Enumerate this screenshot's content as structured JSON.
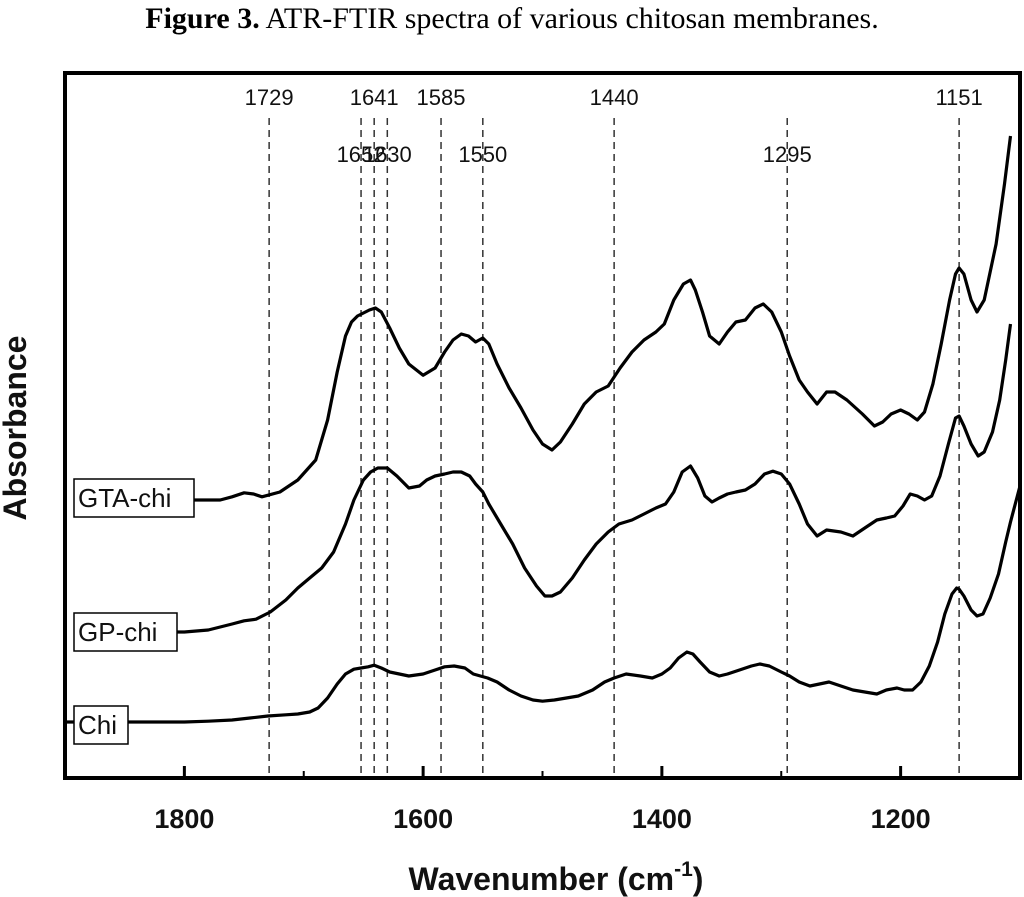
{
  "figure": {
    "caption_prefix": "Figure 3.",
    "caption_text": " ATR-FTIR spectra of various chitosan membranes."
  },
  "chart_data": {
    "type": "line",
    "xlabel": "Wavenumber (cm",
    "xlabel_sup": "-1",
    "xlabel_suffix": ")",
    "ylabel": "Absorbance",
    "xlim": [
      1900,
      1100
    ],
    "x_reversed": true,
    "ylim": [
      0,
      1
    ],
    "y_ticks_shown": false,
    "x_ticks": [
      1800,
      1600,
      1400,
      1200
    ],
    "x_tick_labels": [
      "1800",
      "1600",
      "1400",
      "1200"
    ],
    "grid": false,
    "legend": "inline labels at left",
    "peak_lines": [
      1729,
      1652,
      1641,
      1630,
      1585,
      1550,
      1440,
      1295,
      1151
    ],
    "peak_labels": [
      {
        "text": "1729",
        "x": 1729,
        "row": 1
      },
      {
        "text": "1641",
        "x": 1641,
        "row": 1
      },
      {
        "text": "1585",
        "x": 1585,
        "row": 1
      },
      {
        "text": "1440",
        "x": 1440,
        "row": 1
      },
      {
        "text": "1151",
        "x": 1151,
        "row": 1
      },
      {
        "text": "1652",
        "x": 1652,
        "row": 2
      },
      {
        "text": "1630",
        "x": 1630,
        "row": 2
      },
      {
        "text": "1550",
        "x": 1550,
        "row": 2
      },
      {
        "text": "1295",
        "x": 1295,
        "row": 2
      }
    ],
    "series": [
      {
        "name": "GTA-chi",
        "x": [
          1850,
          1810,
          1790,
          1770,
          1760,
          1750,
          1742,
          1735,
          1720,
          1705,
          1690,
          1680,
          1672,
          1665,
          1660,
          1655,
          1645,
          1640,
          1635,
          1628,
          1620,
          1612,
          1600,
          1590,
          1582,
          1575,
          1568,
          1562,
          1556,
          1550,
          1545,
          1538,
          1528,
          1518,
          1508,
          1500,
          1492,
          1485,
          1475,
          1465,
          1455,
          1445,
          1435,
          1425,
          1415,
          1405,
          1398,
          1390,
          1382,
          1376,
          1372,
          1366,
          1360,
          1352,
          1345,
          1338,
          1330,
          1322,
          1315,
          1308,
          1300,
          1293,
          1285,
          1278,
          1270,
          1262,
          1255,
          1245,
          1232,
          1222,
          1215,
          1208,
          1200,
          1193,
          1186,
          1180,
          1173,
          1166,
          1159,
          1154,
          1151,
          1147,
          1141,
          1136,
          1130,
          1120,
          1113,
          1108
        ],
        "y": [
          0.06,
          0.06,
          0.06,
          0.06,
          0.068,
          0.078,
          0.075,
          0.068,
          0.08,
          0.11,
          0.16,
          0.26,
          0.38,
          0.47,
          0.505,
          0.52,
          0.535,
          0.54,
          0.53,
          0.49,
          0.44,
          0.4,
          0.372,
          0.39,
          0.43,
          0.46,
          0.475,
          0.47,
          0.455,
          0.465,
          0.45,
          0.4,
          0.34,
          0.29,
          0.235,
          0.2,
          0.185,
          0.205,
          0.25,
          0.3,
          0.33,
          0.345,
          0.39,
          0.43,
          0.46,
          0.48,
          0.5,
          0.56,
          0.6,
          0.61,
          0.585,
          0.53,
          0.47,
          0.45,
          0.48,
          0.505,
          0.51,
          0.54,
          0.55,
          0.53,
          0.48,
          0.42,
          0.36,
          0.33,
          0.3,
          0.33,
          0.33,
          0.31,
          0.275,
          0.245,
          0.255,
          0.275,
          0.285,
          0.275,
          0.26,
          0.28,
          0.35,
          0.45,
          0.56,
          0.625,
          0.64,
          0.625,
          0.56,
          0.53,
          0.56,
          0.7,
          0.85,
          0.97
        ]
      },
      {
        "name": "GP-chi",
        "x": [
          1830,
          1800,
          1780,
          1760,
          1750,
          1740,
          1728,
          1715,
          1705,
          1695,
          1685,
          1675,
          1665,
          1658,
          1650,
          1644,
          1638,
          1630,
          1622,
          1612,
          1603,
          1597,
          1590,
          1582,
          1575,
          1568,
          1561,
          1556,
          1550,
          1545,
          1535,
          1525,
          1515,
          1505,
          1498,
          1492,
          1485,
          1475,
          1465,
          1455,
          1445,
          1436,
          1425,
          1415,
          1405,
          1397,
          1390,
          1383,
          1376,
          1370,
          1364,
          1358,
          1352,
          1345,
          1338,
          1330,
          1322,
          1314,
          1307,
          1300,
          1293,
          1285,
          1278,
          1270,
          1262,
          1250,
          1240,
          1230,
          1220,
          1212,
          1205,
          1198,
          1192,
          1186,
          1180,
          1174,
          1167,
          1160,
          1154,
          1151,
          1147,
          1141,
          1135,
          1130,
          1123,
          1117,
          1112,
          1108
        ],
        "y": [
          0.06,
          0.06,
          0.065,
          0.08,
          0.088,
          0.092,
          0.11,
          0.14,
          0.17,
          0.195,
          0.22,
          0.26,
          0.33,
          0.39,
          0.44,
          0.46,
          0.47,
          0.47,
          0.45,
          0.42,
          0.425,
          0.44,
          0.45,
          0.455,
          0.46,
          0.46,
          0.45,
          0.43,
          0.41,
          0.38,
          0.33,
          0.28,
          0.22,
          0.175,
          0.15,
          0.15,
          0.16,
          0.195,
          0.24,
          0.28,
          0.31,
          0.33,
          0.34,
          0.355,
          0.37,
          0.38,
          0.41,
          0.46,
          0.475,
          0.445,
          0.4,
          0.385,
          0.395,
          0.405,
          0.41,
          0.415,
          0.43,
          0.455,
          0.462,
          0.455,
          0.43,
          0.38,
          0.33,
          0.3,
          0.315,
          0.31,
          0.3,
          0.32,
          0.34,
          0.345,
          0.35,
          0.375,
          0.405,
          0.4,
          0.39,
          0.4,
          0.45,
          0.53,
          0.595,
          0.6,
          0.575,
          0.53,
          0.5,
          0.51,
          0.56,
          0.64,
          0.74,
          0.83
        ]
      },
      {
        "name": "Chi",
        "x": [
          1900,
          1850,
          1820,
          1800,
          1780,
          1760,
          1745,
          1730,
          1715,
          1705,
          1695,
          1688,
          1680,
          1672,
          1665,
          1658,
          1652,
          1646,
          1641,
          1635,
          1628,
          1620,
          1612,
          1600,
          1590,
          1582,
          1574,
          1565,
          1558,
          1552,
          1546,
          1538,
          1528,
          1518,
          1508,
          1500,
          1490,
          1480,
          1470,
          1458,
          1448,
          1440,
          1430,
          1418,
          1408,
          1400,
          1393,
          1386,
          1379,
          1374,
          1368,
          1360,
          1352,
          1345,
          1335,
          1325,
          1318,
          1310,
          1300,
          1293,
          1285,
          1276,
          1268,
          1260,
          1250,
          1240,
          1230,
          1220,
          1212,
          1203,
          1197,
          1190,
          1183,
          1176,
          1169,
          1163,
          1157,
          1153,
          1151,
          1147,
          1141,
          1136,
          1131,
          1125,
          1118,
          1112,
          1108,
          1100
        ],
        "y": [
          0.06,
          0.06,
          0.06,
          0.06,
          0.062,
          0.065,
          0.07,
          0.075,
          0.078,
          0.08,
          0.085,
          0.095,
          0.12,
          0.155,
          0.18,
          0.192,
          0.195,
          0.198,
          0.202,
          0.195,
          0.185,
          0.18,
          0.175,
          0.18,
          0.19,
          0.198,
          0.2,
          0.195,
          0.18,
          0.175,
          0.17,
          0.16,
          0.14,
          0.125,
          0.115,
          0.112,
          0.115,
          0.12,
          0.125,
          0.14,
          0.16,
          0.17,
          0.18,
          0.175,
          0.17,
          0.18,
          0.195,
          0.22,
          0.235,
          0.23,
          0.21,
          0.185,
          0.175,
          0.18,
          0.19,
          0.2,
          0.205,
          0.2,
          0.185,
          0.175,
          0.16,
          0.15,
          0.155,
          0.16,
          0.15,
          0.14,
          0.135,
          0.13,
          0.14,
          0.145,
          0.14,
          0.14,
          0.16,
          0.2,
          0.26,
          0.33,
          0.38,
          0.395,
          0.392,
          0.375,
          0.34,
          0.325,
          0.33,
          0.37,
          0.43,
          0.51,
          0.56,
          0.65
        ]
      }
    ]
  }
}
